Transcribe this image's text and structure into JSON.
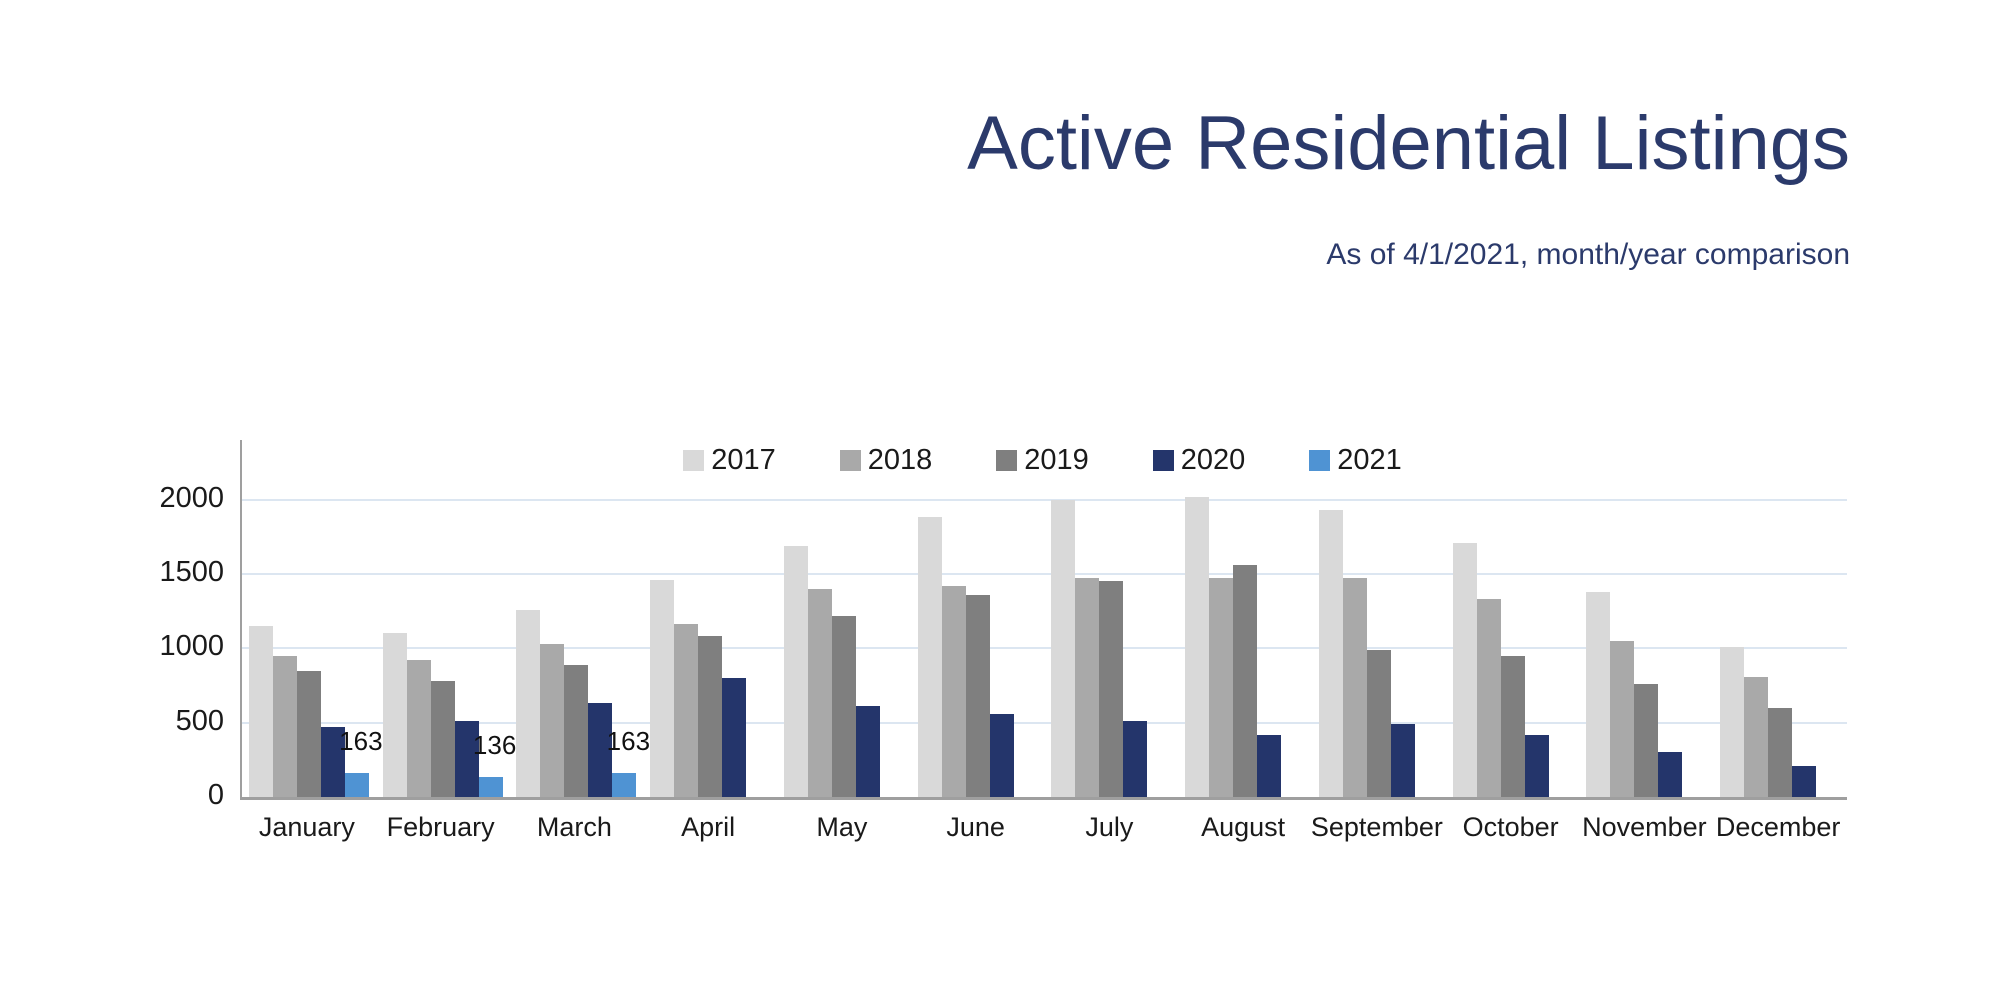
{
  "header": {
    "title": "Active Residential Listings",
    "subtitle": "As of 4/1/2021, month/year comparison",
    "title_color": "#2b3a6b"
  },
  "chart_data": {
    "type": "bar",
    "title": "Active Residential Listings",
    "subtitle": "As of 4/1/2021, month/year comparison",
    "categories": [
      "January",
      "February",
      "March",
      "April",
      "May",
      "June",
      "July",
      "August",
      "September",
      "October",
      "November",
      "December"
    ],
    "series": [
      {
        "name": "2017",
        "color": "#d9d9d9",
        "values": [
          1150,
          1100,
          1260,
          1460,
          1690,
          1880,
          2000,
          2020,
          1930,
          1710,
          1380,
          1010
        ]
      },
      {
        "name": "2018",
        "color": "#a9a9a9",
        "values": [
          950,
          920,
          1030,
          1160,
          1400,
          1420,
          1470,
          1470,
          1470,
          1330,
          1050,
          810
        ]
      },
      {
        "name": "2019",
        "color": "#7f7f7f",
        "values": [
          850,
          780,
          890,
          1080,
          1220,
          1360,
          1450,
          1560,
          990,
          950,
          760,
          600
        ]
      },
      {
        "name": "2020",
        "color": "#24356b",
        "values": [
          470,
          510,
          630,
          800,
          610,
          560,
          510,
          420,
          490,
          420,
          300,
          210
        ]
      },
      {
        "name": "2021",
        "color": "#4f93d3",
        "values": [
          163,
          136,
          163,
          null,
          null,
          null,
          null,
          null,
          null,
          null,
          null,
          null
        ],
        "show_labels": true
      }
    ],
    "yticks": [
      0,
      500,
      1000,
      1500,
      2000
    ],
    "ylim": [
      0,
      2400
    ],
    "xlabel": "",
    "ylabel": "",
    "grid": true,
    "gridline_color": "#dce6f1",
    "axis_color": "#9f9f9f",
    "legend_position": "top-center",
    "legend_text_color": "#1a1a1a"
  }
}
